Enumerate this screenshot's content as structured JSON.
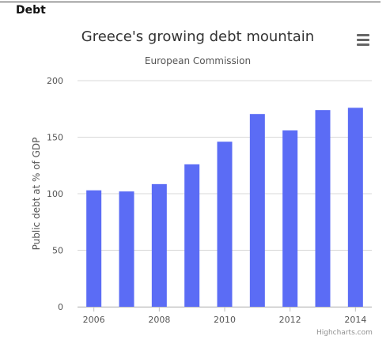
{
  "section": {
    "heading": "Debt"
  },
  "menu": {
    "icon": "hamburger-menu-icon"
  },
  "credits": "Highcharts.com",
  "chart_data": {
    "type": "bar",
    "title": "Greece's growing debt mountain",
    "subtitle": "European Commission",
    "ylabel": "Public debt at % of GDP",
    "xlabel": "",
    "categories": [
      "2006",
      "2007",
      "2008",
      "2009",
      "2010",
      "2011",
      "2012",
      "2013",
      "2014"
    ],
    "x_tick_labels": [
      "2006",
      "2008",
      "2010",
      "2012",
      "2014"
    ],
    "y_ticks": [
      0,
      50,
      100,
      150,
      200
    ],
    "values": [
      103,
      102,
      108.5,
      126,
      146,
      170.5,
      156,
      174,
      176
    ],
    "ylim": [
      0,
      200
    ],
    "grid": true,
    "color": "#5b6cf5"
  }
}
